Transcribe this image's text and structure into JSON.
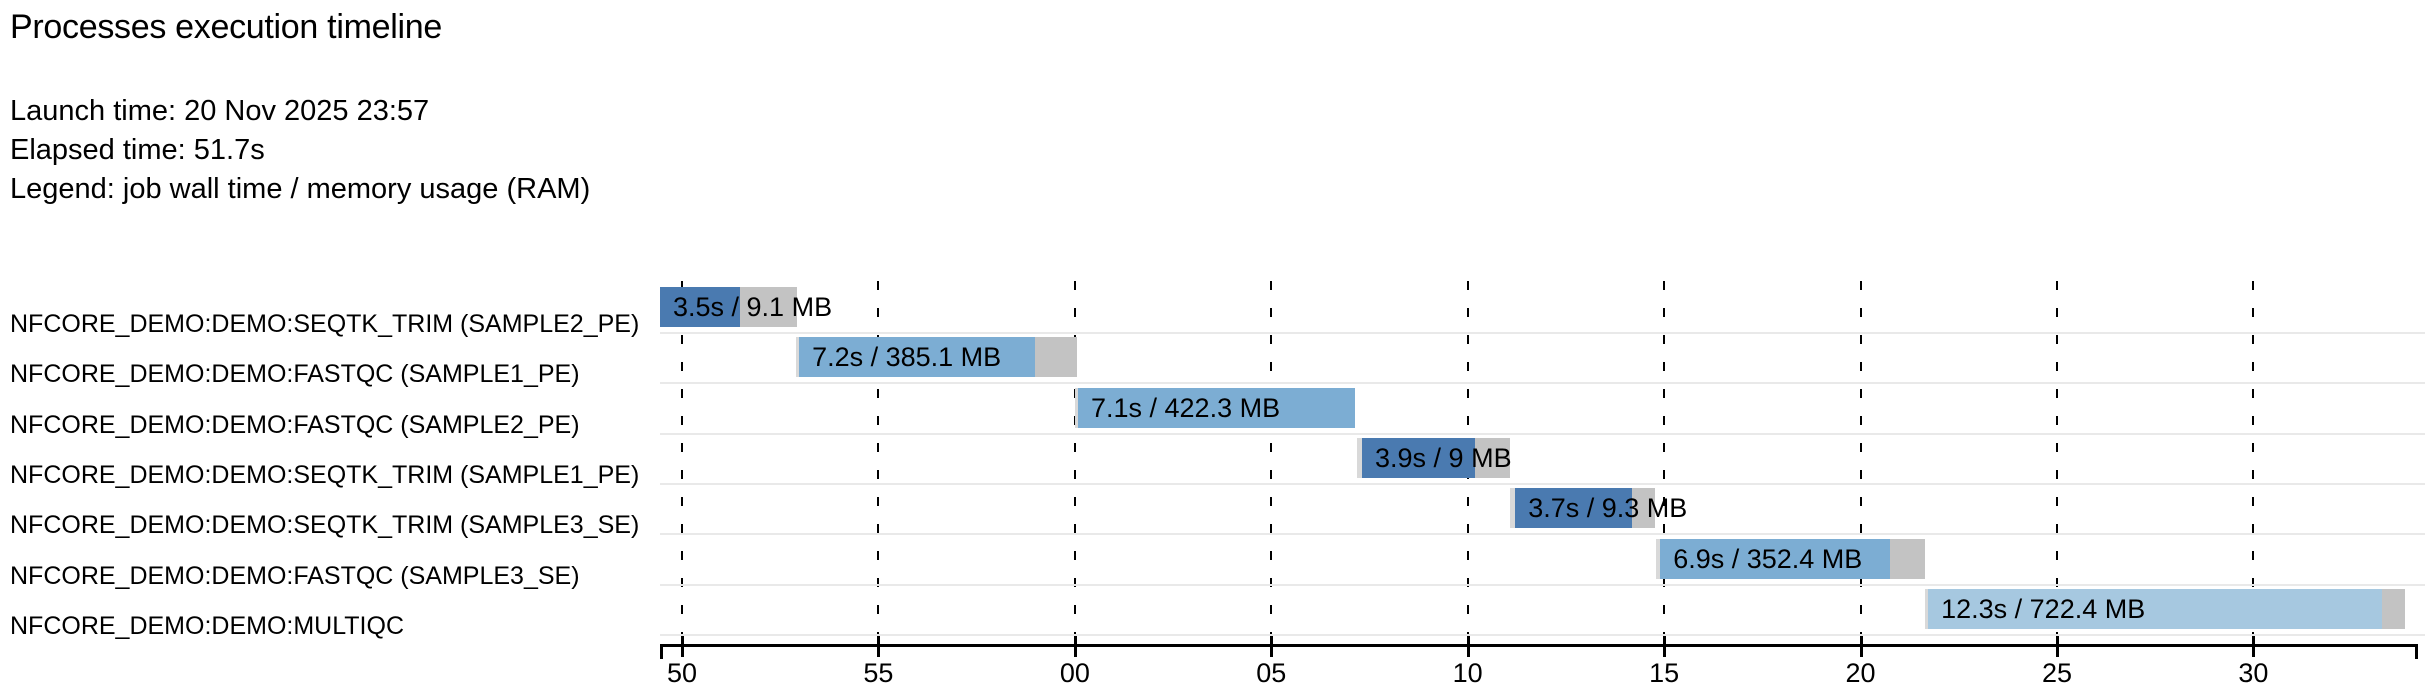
{
  "header": {
    "title": "Processes execution timeline",
    "launch_time": "Launch time: 20 Nov 2025 23:57",
    "elapsed_time": "Elapsed time: 51.7s",
    "legend": "Legend: job wall time / memory usage (RAM)"
  },
  "colors": {
    "seqtk_trim_bar": "#4a7ab0",
    "fastqc_bar": "#7cadd3",
    "multiqc_bar": "#a6c8e0",
    "memory_tail_gray": "#c3c3c3",
    "submit_head_gray": "#d9d9d9",
    "row_separator": "#e9e9e9",
    "text": "#000000"
  },
  "chart_data": {
    "type": "gantt",
    "title": "Processes execution timeline",
    "launch_time": "20 Nov 2025 23:57",
    "elapsed_time_s": 51.7,
    "legend": "job wall time / memory usage (RAM)",
    "axis": {
      "unit": "seconds (clock ss past the minute)",
      "window_seconds": 44.75,
      "grid": true,
      "ticks": [
        {
          "t": 0.56,
          "label": "50"
        },
        {
          "t": 5.56,
          "label": "55"
        },
        {
          "t": 10.56,
          "label": "00"
        },
        {
          "t": 15.56,
          "label": "05"
        },
        {
          "t": 20.56,
          "label": "10"
        },
        {
          "t": 25.56,
          "label": "15"
        },
        {
          "t": 30.56,
          "label": "20"
        },
        {
          "t": 35.56,
          "label": "25"
        },
        {
          "t": 40.56,
          "label": "30"
        }
      ]
    },
    "rows": [
      {
        "process": "NFCORE_DEMO:DEMO:SEQTK_TRIM (SAMPLE2_PE)",
        "bar_label": "3.5s / 9.1 MB",
        "wall_time": "3.5s",
        "memory": "9.1 MB",
        "color": "#4a7ab0",
        "start_s": 0.0,
        "run_start_s": 0.0,
        "run_end_s": 2.04,
        "end_s": 3.49
      },
      {
        "process": "NFCORE_DEMO:DEMO:FASTQC (SAMPLE1_PE)",
        "bar_label": "7.2s / 385.1 MB",
        "wall_time": "7.2s",
        "memory": "385.1 MB",
        "color": "#7cadd3",
        "start_s": 3.46,
        "run_start_s": 3.54,
        "run_end_s": 9.55,
        "end_s": 10.62
      },
      {
        "process": "NFCORE_DEMO:DEMO:FASTQC (SAMPLE2_PE)",
        "bar_label": "7.1s / 422.3 MB",
        "wall_time": "7.1s",
        "memory": "422.3 MB",
        "color": "#7cadd3",
        "start_s": 10.56,
        "run_start_s": 10.64,
        "run_end_s": 17.69,
        "end_s": 17.69
      },
      {
        "process": "NFCORE_DEMO:DEMO:SEQTK_TRIM (SAMPLE1_PE)",
        "bar_label": "3.9s / 9 MB",
        "wall_time": "3.9s",
        "memory": "9 MB",
        "color": "#4a7ab0",
        "start_s": 17.74,
        "run_start_s": 17.87,
        "run_end_s": 20.75,
        "end_s": 21.64
      },
      {
        "process": "NFCORE_DEMO:DEMO:SEQTK_TRIM (SAMPLE3_SE)",
        "bar_label": "3.7s / 9.3 MB",
        "wall_time": "3.7s",
        "memory": "9.3 MB",
        "color": "#4a7ab0",
        "start_s": 21.64,
        "run_start_s": 21.77,
        "run_end_s": 24.75,
        "end_s": 25.33
      },
      {
        "process": "NFCORE_DEMO:DEMO:FASTQC (SAMPLE3_SE)",
        "bar_label": "6.9s / 352.4 MB",
        "wall_time": "6.9s",
        "memory": "352.4 MB",
        "color": "#7cadd3",
        "start_s": 25.36,
        "run_start_s": 25.46,
        "run_end_s": 31.31,
        "end_s": 32.2
      },
      {
        "process": "NFCORE_DEMO:DEMO:MULTIQC",
        "bar_label": "12.3s / 722.4 MB",
        "wall_time": "12.3s",
        "memory": "722.4 MB",
        "color": "#a6c8e0",
        "start_s": 32.2,
        "run_start_s": 32.28,
        "run_end_s": 43.84,
        "end_s": 44.42
      }
    ]
  }
}
